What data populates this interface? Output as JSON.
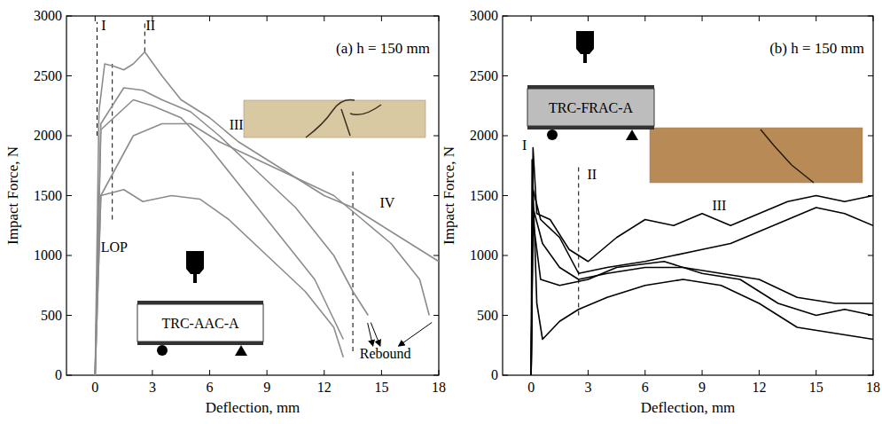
{
  "chart_data": [
    {
      "type": "line",
      "title": "(a) h = 150 mm",
      "specimen": "TRC-AAC-A",
      "x_label": "Deflection, mm",
      "y_label": "Impact Force, N",
      "xlim": [
        -1.5,
        18
      ],
      "ylim": [
        0,
        3000
      ],
      "xticks": [
        0,
        3,
        6,
        9,
        12,
        15,
        18
      ],
      "yticks": [
        0,
        500,
        1000,
        1500,
        2000,
        2500,
        3000
      ],
      "series": [
        {
          "color": "#8c8c8c",
          "x": [
            0,
            0.2,
            0.5,
            1,
            1.5,
            2,
            2.6,
            3.5,
            4.5,
            6,
            7.5,
            9,
            10.5,
            12,
            13.5,
            15,
            16.5,
            17.5,
            18
          ],
          "values": [
            0,
            2200,
            2600,
            2580,
            2550,
            2600,
            2700,
            2500,
            2300,
            2150,
            1950,
            1800,
            1650,
            1500,
            1400,
            1250,
            1100,
            1000,
            950
          ]
        },
        {
          "color": "#8c8c8c",
          "x": [
            0,
            0.3,
            1.5,
            2.5,
            3.5,
            5,
            6.5,
            8.5,
            10.5,
            12.5,
            13.5,
            14.3
          ],
          "values": [
            0,
            2100,
            2400,
            2380,
            2300,
            2200,
            2000,
            1700,
            1400,
            1000,
            700,
            500
          ]
        },
        {
          "color": "#8c8c8c",
          "x": [
            0,
            0.3,
            2,
            3,
            4.5,
            6,
            7.5,
            9.5,
            11.5,
            13
          ],
          "values": [
            0,
            2050,
            2300,
            2250,
            2150,
            1900,
            1600,
            1200,
            800,
            300
          ]
        },
        {
          "color": "#8c8c8c",
          "x": [
            0,
            0.3,
            2,
            3.5,
            5,
            6.5,
            8.5,
            10.5,
            12.5,
            14,
            15.5,
            17,
            17.5
          ],
          "values": [
            0,
            1500,
            2000,
            2100,
            2100,
            1950,
            1800,
            1650,
            1500,
            1300,
            1100,
            800,
            500
          ]
        },
        {
          "color": "#8c8c8c",
          "x": [
            0,
            0.3,
            1.5,
            2.5,
            4,
            5.5,
            7,
            9,
            11,
            12.5,
            13
          ],
          "values": [
            0,
            1500,
            1550,
            1450,
            1500,
            1470,
            1300,
            1000,
            700,
            400,
            150
          ]
        }
      ],
      "reference_lines": [
        {
          "x": 0.1,
          "y": [
            2000,
            2950
          ],
          "line_style": "dashed"
        },
        {
          "x": 0.9,
          "y": [
            1300,
            2600
          ],
          "line_style": "dashed"
        },
        {
          "x": 2.6,
          "y": [
            2700,
            2950
          ],
          "line_style": "dashed"
        },
        {
          "x": 13.5,
          "y": [
            200,
            1700
          ],
          "line_style": "dashed"
        }
      ],
      "annotations": [
        {
          "text": "I",
          "x": 0.45,
          "y": 2880
        },
        {
          "text": "II",
          "x": 2.9,
          "y": 2880
        },
        {
          "text": "III",
          "x": 7.4,
          "y": 2050
        },
        {
          "text": "IV",
          "x": 15.3,
          "y": 1400
        },
        {
          "text": "LOP",
          "x": 1.0,
          "y": 1030
        },
        {
          "text": "Rebound",
          "x": 15.2,
          "y": 140
        }
      ]
    },
    {
      "type": "line",
      "title": "(b) h = 150 mm",
      "specimen": "TRC-FRAC-A",
      "x_label": "Deflection, mm",
      "y_label": "Impact Force, N",
      "xlim": [
        -1.5,
        18
      ],
      "ylim": [
        0,
        3000
      ],
      "xticks": [
        0,
        3,
        6,
        9,
        12,
        15,
        18
      ],
      "yticks": [
        0,
        500,
        1000,
        1500,
        2000,
        2500,
        3000
      ],
      "series": [
        {
          "color": "#000000",
          "x": [
            0,
            0.1,
            0.3,
            1,
            2,
            3,
            4.5,
            6,
            7.5,
            9,
            10.5,
            12,
            13.5,
            15,
            16.5,
            18
          ],
          "values": [
            0,
            1900,
            1350,
            1300,
            1050,
            950,
            1150,
            1300,
            1250,
            1350,
            1250,
            1350,
            1450,
            1500,
            1450,
            1500
          ]
        },
        {
          "color": "#000000",
          "x": [
            0,
            0.1,
            0.5,
            1.5,
            2.5,
            4,
            6,
            7.5,
            9,
            10.5,
            12,
            13.5,
            15,
            16.5,
            18
          ],
          "values": [
            0,
            1550,
            1300,
            1150,
            850,
            900,
            950,
            1000,
            1050,
            1100,
            1200,
            1300,
            1400,
            1350,
            1250
          ]
        },
        {
          "color": "#000000",
          "x": [
            0,
            0.1,
            0.6,
            1.5,
            2.5,
            4,
            6,
            8,
            10,
            12,
            14,
            16,
            18
          ],
          "values": [
            0,
            1400,
            1100,
            900,
            800,
            850,
            900,
            900,
            850,
            800,
            650,
            600,
            600
          ]
        },
        {
          "color": "#000000",
          "x": [
            0,
            0.1,
            0.5,
            1.5,
            3,
            4.5,
            7,
            9,
            11,
            13,
            15,
            16.5,
            18
          ],
          "values": [
            0,
            1300,
            800,
            750,
            800,
            900,
            950,
            850,
            800,
            600,
            500,
            550,
            500
          ]
        },
        {
          "color": "#000000",
          "x": [
            0,
            0.05,
            0.3,
            0.6,
            1.5,
            2.5,
            4,
            6,
            8,
            10,
            12,
            14,
            16,
            18
          ],
          "values": [
            0,
            1800,
            600,
            300,
            450,
            550,
            650,
            750,
            800,
            750,
            600,
            400,
            350,
            300
          ]
        }
      ],
      "reference_lines": [
        {
          "x": 2.5,
          "y": [
            500,
            1750
          ],
          "line_style": "dashed"
        }
      ],
      "annotations": [
        {
          "text": "I",
          "x": -0.35,
          "y": 1880
        },
        {
          "text": "II",
          "x": 3.2,
          "y": 1640
        },
        {
          "text": "III",
          "x": 9.9,
          "y": 1380
        }
      ]
    }
  ]
}
